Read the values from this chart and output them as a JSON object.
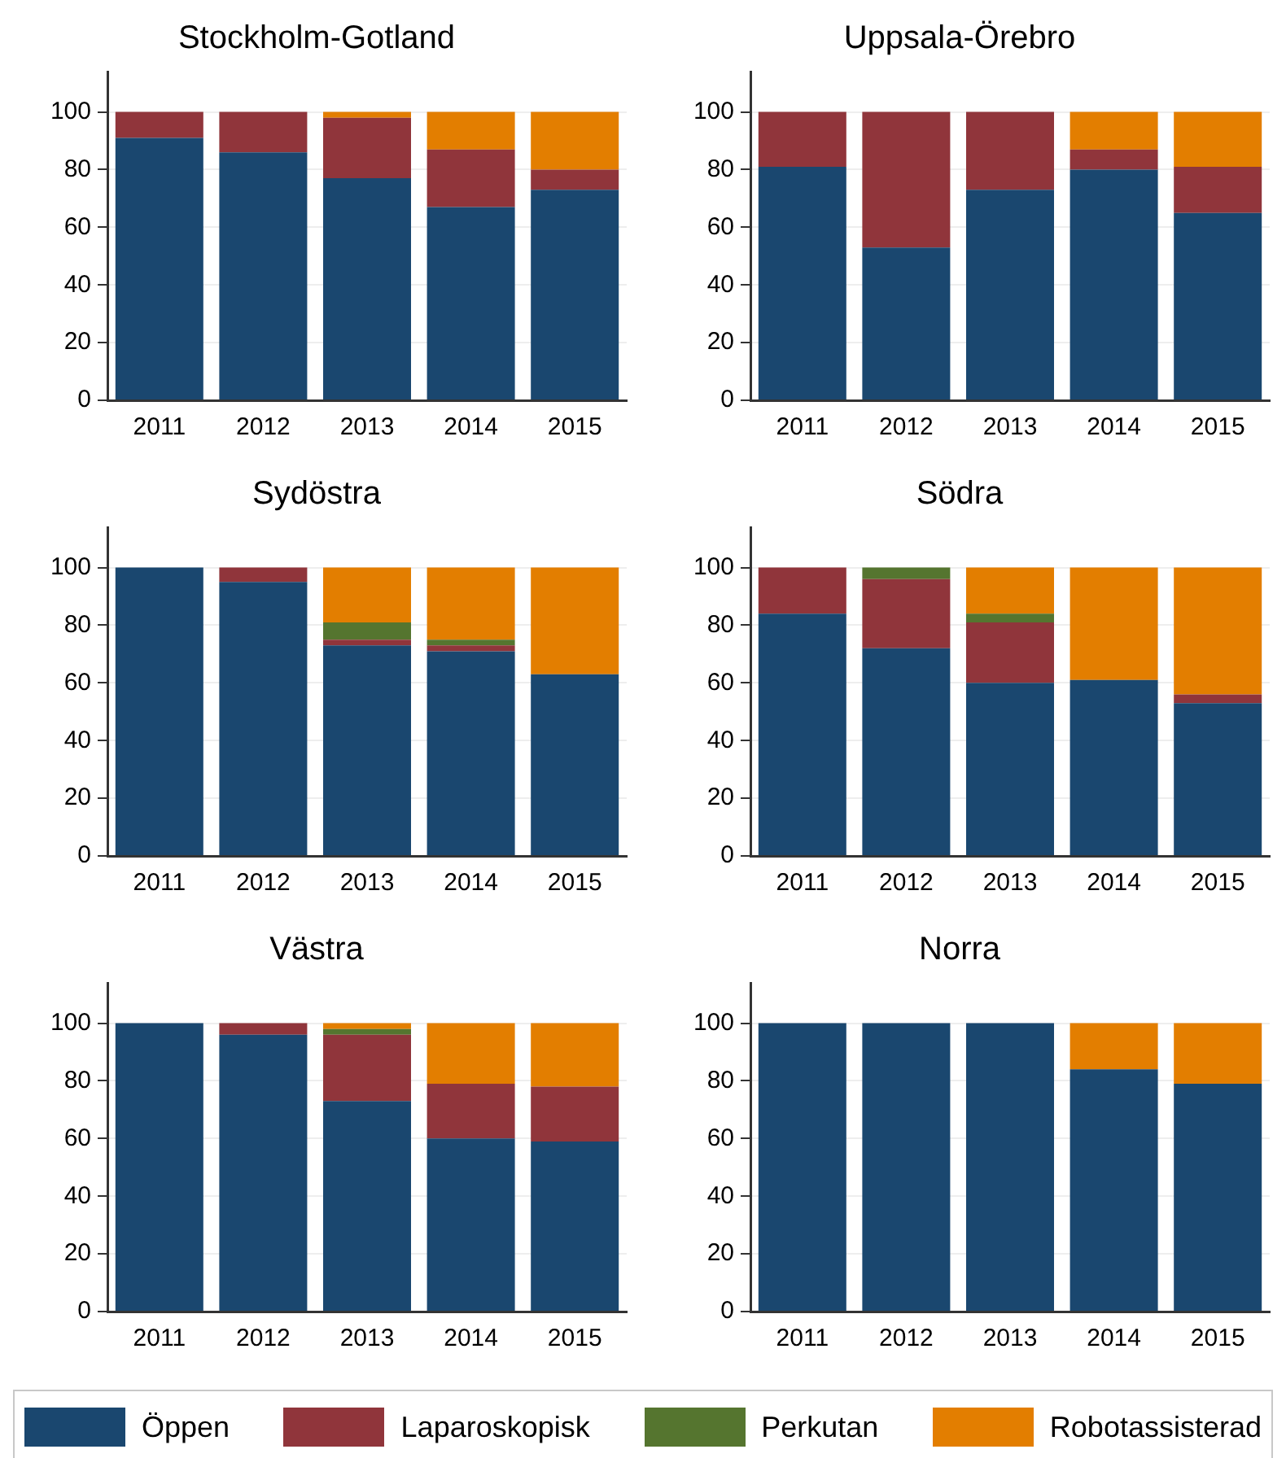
{
  "chart_data": [
    {
      "type": "bar",
      "title": "Stockholm-Gotland",
      "stacked": true,
      "categories": [
        "2011",
        "2012",
        "2013",
        "2014",
        "2015"
      ],
      "ylim": [
        0,
        114
      ],
      "yticks": [
        0,
        20,
        40,
        60,
        80,
        100
      ],
      "grid": "y",
      "legend": "bottom",
      "series": [
        {
          "name": "Öppen",
          "color": "#1a476f",
          "values": [
            91,
            86,
            77,
            67,
            73
          ]
        },
        {
          "name": "Laparoskopisk",
          "color": "#90353b",
          "values": [
            9,
            14,
            21,
            20,
            7
          ]
        },
        {
          "name": "Perkutan",
          "color": "#55752f",
          "values": [
            0,
            0,
            0,
            0,
            0
          ]
        },
        {
          "name": "Robotassisterad",
          "color": "#e37e00",
          "values": [
            0,
            0,
            2,
            13,
            20
          ]
        }
      ]
    },
    {
      "type": "bar",
      "title": "Uppsala-Örebro",
      "stacked": true,
      "categories": [
        "2011",
        "2012",
        "2013",
        "2014",
        "2015"
      ],
      "ylim": [
        0,
        114
      ],
      "yticks": [
        0,
        20,
        40,
        60,
        80,
        100
      ],
      "grid": "y",
      "series": [
        {
          "color": "#1a476f",
          "values": [
            81,
            53,
            73,
            80,
            65
          ]
        },
        {
          "color": "#90353b",
          "values": [
            19,
            47,
            27,
            7,
            16
          ]
        },
        {
          "color": "#55752f",
          "values": [
            0,
            0,
            0,
            0,
            0
          ]
        },
        {
          "color": "#e37e00",
          "values": [
            0,
            0,
            0,
            13,
            19
          ]
        }
      ]
    },
    {
      "type": "bar",
      "title": "Sydöstra",
      "stacked": true,
      "categories": [
        "2011",
        "2012",
        "2013",
        "2014",
        "2015"
      ],
      "ylim": [
        0,
        114
      ],
      "yticks": [
        0,
        20,
        40,
        60,
        80,
        100
      ],
      "grid": "y",
      "series": [
        {
          "color": "#1a476f",
          "values": [
            100,
            95,
            73,
            71,
            63
          ]
        },
        {
          "color": "#90353b",
          "values": [
            0,
            5,
            2,
            2,
            0
          ]
        },
        {
          "color": "#55752f",
          "values": [
            0,
            0,
            6,
            2,
            0
          ]
        },
        {
          "color": "#e37e00",
          "values": [
            0,
            0,
            19,
            25,
            37
          ]
        }
      ]
    },
    {
      "type": "bar",
      "title": "Södra",
      "stacked": true,
      "categories": [
        "2011",
        "2012",
        "2013",
        "2014",
        "2015"
      ],
      "ylim": [
        0,
        114
      ],
      "yticks": [
        0,
        20,
        40,
        60,
        80,
        100
      ],
      "grid": "y",
      "series": [
        {
          "color": "#1a476f",
          "values": [
            84,
            72,
            60,
            61,
            53
          ]
        },
        {
          "color": "#90353b",
          "values": [
            16,
            24,
            21,
            0,
            3
          ]
        },
        {
          "color": "#55752f",
          "values": [
            0,
            4,
            3,
            0,
            0
          ]
        },
        {
          "color": "#e37e00",
          "values": [
            0,
            0,
            16,
            39,
            44
          ]
        }
      ]
    },
    {
      "type": "bar",
      "title": "Västra",
      "stacked": true,
      "categories": [
        "2011",
        "2012",
        "2013",
        "2014",
        "2015"
      ],
      "ylim": [
        0,
        114
      ],
      "yticks": [
        0,
        20,
        40,
        60,
        80,
        100
      ],
      "grid": "y",
      "series": [
        {
          "color": "#1a476f",
          "values": [
            100,
            96,
            73,
            60,
            59
          ]
        },
        {
          "color": "#90353b",
          "values": [
            0,
            4,
            23,
            19,
            19
          ]
        },
        {
          "color": "#55752f",
          "values": [
            0,
            0,
            2,
            0,
            0
          ]
        },
        {
          "color": "#e37e00",
          "values": [
            0,
            0,
            2,
            21,
            22
          ]
        }
      ]
    },
    {
      "type": "bar",
      "title": "Norra",
      "stacked": true,
      "categories": [
        "2011",
        "2012",
        "2013",
        "2014",
        "2015"
      ],
      "ylim": [
        0,
        114
      ],
      "yticks": [
        0,
        20,
        40,
        60,
        80,
        100
      ],
      "grid": "y",
      "series": [
        {
          "color": "#1a476f",
          "values": [
            100,
            100,
            100,
            84,
            79
          ]
        },
        {
          "color": "#90353b",
          "values": [
            0,
            0,
            0,
            0,
            0
          ]
        },
        {
          "color": "#55752f",
          "values": [
            0,
            0,
            0,
            0,
            0
          ]
        },
        {
          "color": "#e37e00",
          "values": [
            0,
            0,
            0,
            16,
            21
          ]
        }
      ]
    }
  ]
}
